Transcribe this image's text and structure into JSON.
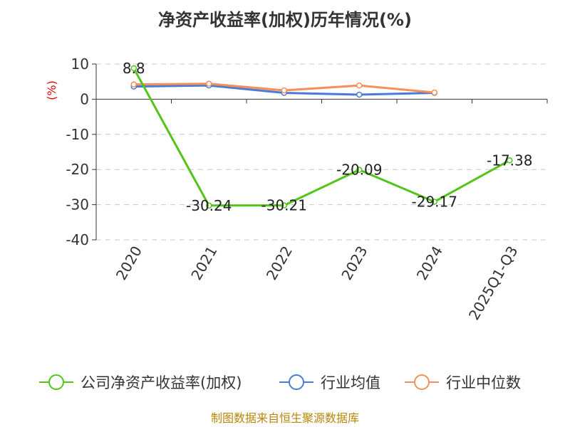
{
  "chart_data": {
    "type": "line",
    "title": "净资产收益率(加权)历年情况(%)",
    "unit_label": "(%)",
    "categories": [
      "2020",
      "2021",
      "2022",
      "2023",
      "2024",
      "2025Q1-Q3"
    ],
    "ylim": [
      -40,
      10
    ],
    "yticks": [
      10,
      0,
      -10,
      -20,
      -30,
      -40
    ],
    "grid": true,
    "legend_position": "bottom",
    "series": [
      {
        "name": "公司净资产收益率(加权)",
        "color": "#52c41a",
        "values": [
          8.8,
          -30.24,
          -30.21,
          -20.09,
          -29.17,
          -17.38
        ],
        "labels": [
          "8.8",
          "-30.24",
          "-30.21",
          "-20.09",
          "-29.17",
          "-17.38"
        ]
      },
      {
        "name": "行业均值",
        "color": "#4a7bd8",
        "values": [
          3.6,
          3.9,
          1.8,
          1.3,
          1.8,
          null
        ]
      },
      {
        "name": "行业中位数",
        "color": "#f4905a",
        "values": [
          4.2,
          4.4,
          2.5,
          3.9,
          1.9,
          null
        ]
      }
    ]
  },
  "footer": {
    "source": "制图数据来自恒生聚源数据库"
  }
}
